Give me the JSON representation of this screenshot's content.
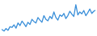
{
  "chart_data": {
    "type": "line",
    "x": [
      0,
      1,
      2,
      3,
      4,
      5,
      6,
      7,
      8,
      9,
      10,
      11,
      12,
      13,
      14,
      15,
      16,
      17,
      18,
      19,
      20,
      21,
      22,
      23,
      24,
      25,
      26,
      27,
      28,
      29,
      30,
      31,
      32,
      33,
      34,
      35,
      36,
      37,
      38,
      39,
      40,
      41,
      42,
      43,
      44,
      45,
      46,
      47
    ],
    "values": [
      22,
      18,
      25,
      20,
      30,
      28,
      35,
      26,
      40,
      33,
      45,
      38,
      30,
      42,
      36,
      50,
      44,
      40,
      55,
      48,
      42,
      60,
      50,
      46,
      58,
      52,
      70,
      55,
      48,
      62,
      58,
      66,
      52,
      60,
      72,
      64,
      58,
      90,
      62,
      70,
      65,
      74,
      60,
      68,
      78,
      66,
      72,
      75
    ],
    "color": "#3a8fd9",
    "xlim": [
      0,
      47
    ],
    "ylim": [
      10,
      95
    ],
    "tick_labels": false,
    "grid": false
  }
}
